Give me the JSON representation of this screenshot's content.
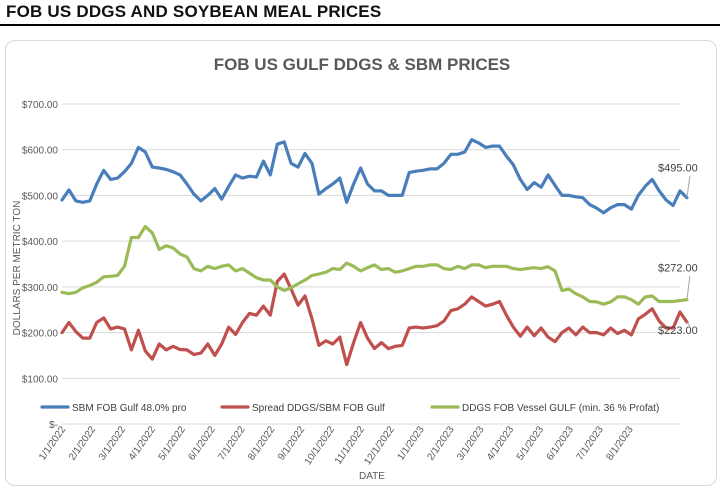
{
  "header": {
    "title": "FOB US DDGS AND SOYBEAN MEAL PRICES"
  },
  "chart_data": {
    "type": "line",
    "title": "FOB US GULF DDGS & SBM PRICES",
    "xlabel": "DATE",
    "ylabel": "DOLLARS PER METRIC TON",
    "ylim": [
      0,
      700
    ],
    "y_ticks": [
      "$700.00",
      "$600.00",
      "$500.00",
      "$400.00",
      "$300.00",
      "$200.00",
      "$100.00",
      "$-"
    ],
    "y_tick_values": [
      700,
      600,
      500,
      400,
      300,
      200,
      100,
      0
    ],
    "x_ticks": [
      "1/1/2022",
      "2/1/2022",
      "3/1/2022",
      "4/1/2022",
      "5/1/2022",
      "6/1/2022",
      "7/1/2022",
      "8/1/2022",
      "9/1/2022",
      "10/1/2022",
      "11/1/2022",
      "12/1/2022",
      "1/1/2023",
      "2/1/2023",
      "3/1/2023",
      "4/1/2023",
      "5/1/2023",
      "6/1/2023",
      "7/1/2023",
      "8/1/2023"
    ],
    "x_domain_weeks": [
      0,
      89
    ],
    "weeks_per_month": 4.3,
    "legend_position": "bottom",
    "series": [
      {
        "name": "SBM FOB Gulf 48.0% pro",
        "color": "#4a7ebb",
        "end_label": "$495.00",
        "values": [
          490,
          512,
          488,
          485,
          488,
          525,
          555,
          535,
          538,
          552,
          570,
          605,
          595,
          562,
          560,
          557,
          552,
          545,
          525,
          503,
          488,
          500,
          515,
          492,
          520,
          545,
          538,
          542,
          540,
          575,
          545,
          612,
          617,
          570,
          562,
          592,
          570,
          503,
          515,
          525,
          538,
          485,
          525,
          560,
          525,
          510,
          510,
          500,
          500,
          500,
          550,
          553,
          555,
          558,
          558,
          570,
          590,
          590,
          595,
          622,
          615,
          605,
          608,
          608,
          586,
          567,
          535,
          513,
          528,
          518,
          545,
          522,
          500,
          500,
          497,
          495,
          480,
          472,
          462,
          473,
          480,
          480,
          470,
          500,
          520,
          535,
          510,
          490,
          478,
          510,
          495
        ]
      },
      {
        "name": "Spread DDGS/SBM FOB Gulf",
        "color": "#c0504d",
        "end_label": "$223.00",
        "values": [
          200,
          222,
          202,
          188,
          188,
          222,
          232,
          208,
          212,
          208,
          162,
          205,
          160,
          142,
          175,
          162,
          170,
          163,
          162,
          152,
          155,
          175,
          150,
          175,
          212,
          196,
          222,
          242,
          238,
          258,
          238,
          312,
          328,
          295,
          260,
          280,
          230,
          172,
          182,
          175,
          190,
          130,
          178,
          222,
          188,
          165,
          178,
          165,
          170,
          172,
          210,
          212,
          210,
          212,
          215,
          225,
          248,
          252,
          262,
          278,
          268,
          258,
          262,
          268,
          238,
          212,
          192,
          212,
          193,
          210,
          190,
          180,
          200,
          210,
          195,
          212,
          200,
          200,
          195,
          210,
          198,
          205,
          195,
          230,
          240,
          252,
          225,
          210,
          210,
          245,
          223
        ]
      },
      {
        "name": "DDGS FOB Vessel GULF  (min. 36 % Profat)",
        "color": "#9bbb59",
        "end_label": "$272.00",
        "values": [
          288,
          285,
          288,
          298,
          303,
          310,
          322,
          323,
          325,
          345,
          408,
          408,
          432,
          418,
          382,
          390,
          385,
          372,
          365,
          340,
          335,
          345,
          340,
          345,
          348,
          335,
          340,
          330,
          320,
          315,
          315,
          300,
          292,
          298,
          307,
          315,
          325,
          328,
          332,
          340,
          338,
          352,
          345,
          335,
          342,
          348,
          338,
          340,
          332,
          335,
          340,
          345,
          345,
          348,
          348,
          340,
          338,
          345,
          340,
          348,
          348,
          342,
          345,
          345,
          345,
          340,
          338,
          340,
          342,
          340,
          344,
          335,
          292,
          295,
          285,
          278,
          268,
          267,
          262,
          267,
          278,
          278,
          272,
          262,
          278,
          280,
          268,
          268,
          268,
          270,
          272
        ]
      }
    ]
  }
}
